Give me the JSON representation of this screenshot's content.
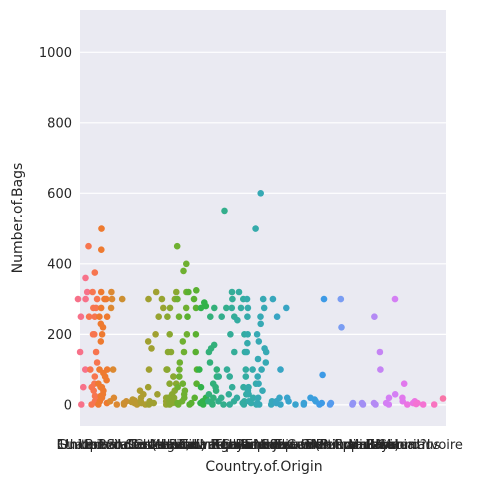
{
  "chart_data": {
    "type": "scatter",
    "subtype": "strip",
    "title": "",
    "xlabel": "Country.of.Origin",
    "ylabel": "Number.of.Bags",
    "ylim": [
      -60,
      1120
    ],
    "yticks": [
      0,
      200,
      400,
      600,
      800,
      1000
    ],
    "grid": true,
    "background": "#eaeaf2",
    "gridColor": "#ffffff",
    "categories": [
      "Ethiopia",
      "Guatemala",
      "Brazil",
      "Peru",
      "United States",
      "United States (Hawaii)",
      "Indonesia",
      "China",
      "Costa Rica",
      "Mexico",
      "Uganda",
      "Honduras",
      "Taiwan",
      "Nicaragua",
      "Tanzania, United Republic Of",
      "Kenya",
      "Thailand",
      "Colombia",
      "Panama",
      "Papua New Guinea",
      "El Salvador",
      "Japan",
      "Ecuador",
      "United States (Puerto Rico)",
      "Haiti",
      "Burundi",
      "Vietnam",
      "Philippines",
      "Rwanda",
      "Malawi",
      "Laos",
      "Zambia",
      "Myanmar",
      "Mauritius",
      "Cote d?Ivoire"
    ],
    "series": [
      {
        "category": "Ethiopia",
        "color": "#f77189",
        "values": [
          300,
          320,
          250,
          150,
          100,
          50,
          1,
          360,
          300
        ]
      },
      {
        "category": "Guatemala",
        "color": "#f7754f",
        "values": [
          275,
          250,
          200,
          150,
          100,
          50,
          25,
          10,
          450,
          375,
          320,
          300,
          275,
          250,
          200,
          120,
          80,
          60,
          40,
          20,
          5,
          1
        ]
      },
      {
        "category": "Brazil",
        "color": "#ee7a30",
        "values": [
          320,
          300,
          275,
          250,
          230,
          200,
          180,
          100,
          90,
          80,
          70,
          60,
          50,
          40,
          30,
          20,
          10,
          5,
          1,
          500,
          440,
          300,
          250,
          220,
          100,
          50,
          25
        ]
      },
      {
        "category": "Peru",
        "color": "#dc8932",
        "values": [
          320,
          300,
          275,
          100,
          20,
          10,
          1
        ]
      },
      {
        "category": "United States",
        "color": "#cc8f32",
        "values": [
          300,
          10,
          5,
          1
        ]
      },
      {
        "category": "United States (Hawaii)",
        "color": "#bb9832",
        "values": [
          15,
          10,
          5,
          1,
          8,
          12
        ]
      },
      {
        "category": "Indonesia",
        "color": "#ae9d31",
        "values": [
          40,
          30,
          20,
          10,
          5,
          1
        ]
      },
      {
        "category": "China",
        "color": "#a0a031",
        "values": [
          320,
          300,
          200,
          180,
          160,
          100,
          50,
          30,
          10,
          5,
          1
        ]
      },
      {
        "category": "Costa Rica",
        "color": "#97a431",
        "values": [
          300,
          275,
          250,
          100,
          20,
          10,
          1
        ]
      },
      {
        "category": "Mexico",
        "color": "#8aa831",
        "values": [
          320,
          300,
          275,
          250,
          200,
          150,
          100,
          80,
          60,
          40,
          30,
          20,
          10,
          5,
          1,
          150,
          60,
          20,
          5
        ]
      },
      {
        "category": "Uganda",
        "color": "#6fb031",
        "values": [
          450,
          400,
          380,
          320,
          300,
          275,
          250,
          200,
          180,
          150,
          120,
          100,
          80,
          60,
          50,
          40,
          30,
          20,
          10,
          5,
          1
        ]
      },
      {
        "category": "Honduras",
        "color": "#5ab031",
        "values": [
          325,
          320,
          300,
          275,
          250,
          200,
          150,
          100,
          60,
          20,
          5,
          1
        ]
      },
      {
        "category": "Taiwan",
        "color": "#32b24a",
        "values": [
          290,
          280,
          275,
          100,
          50,
          20,
          10,
          5,
          1
        ]
      },
      {
        "category": "Nicaragua",
        "color": "#33b07a",
        "values": [
          275,
          250,
          170,
          160,
          150,
          120,
          100,
          80,
          60,
          50,
          40,
          30,
          20,
          10,
          5,
          1
        ]
      },
      {
        "category": "Tanzania, United Republic Of",
        "color": "#33ae8c",
        "values": [
          550,
          275,
          250,
          80,
          20,
          10,
          1
        ]
      },
      {
        "category": "Kenya",
        "color": "#34ad98",
        "values": [
          320,
          300,
          275,
          250,
          200,
          150,
          100,
          80,
          50,
          30,
          10,
          1
        ]
      },
      {
        "category": "Thailand",
        "color": "#34aca1",
        "values": [
          320,
          300,
          275,
          240,
          200,
          150,
          100,
          80,
          50,
          30,
          20,
          10,
          5,
          1
        ]
      },
      {
        "category": "Colombia",
        "color": "#35abab",
        "values": [
          500,
          300,
          275,
          250,
          200,
          175,
          150,
          100,
          60,
          50,
          40,
          30,
          20,
          10,
          5,
          1
        ]
      },
      {
        "category": "Panama",
        "color": "#36a9b4",
        "values": [
          600,
          300,
          275,
          250,
          230,
          200,
          180,
          160,
          150,
          130,
          120,
          100,
          80,
          60,
          40,
          20,
          5,
          1
        ]
      },
      {
        "category": "Papua New Guinea",
        "color": "#37a7bc",
        "values": [
          300,
          10,
          1
        ]
      },
      {
        "category": "El Salvador",
        "color": "#38a5c4",
        "values": [
          275,
          250,
          100,
          20,
          10,
          5,
          1
        ]
      },
      {
        "category": "Japan",
        "color": "#39a3cd",
        "values": [
          20,
          10,
          1
        ]
      },
      {
        "category": "Ecuador",
        "color": "#3aa1d6",
        "values": [
          5,
          1
        ]
      },
      {
        "category": "United States (Puerto Rico)",
        "color": "#3b9edd",
        "values": [
          20,
          15,
          10
        ]
      },
      {
        "category": "Haiti",
        "color": "#3d9ae6",
        "values": [
          300,
          85,
          5,
          1
        ]
      },
      {
        "category": "Burundi",
        "color": "#559bee",
        "values": [
          1,
          5
        ]
      },
      {
        "category": "Vietnam",
        "color": "#7a9df3",
        "values": [
          300,
          220
        ]
      },
      {
        "category": "Philippines",
        "color": "#9394f5",
        "values": [
          5,
          1
        ]
      },
      {
        "category": "Rwanda",
        "color": "#a38ff4",
        "values": [
          5,
          1
        ]
      },
      {
        "category": "Malawi",
        "color": "#b48af4",
        "values": [
          250,
          5,
          1
        ]
      },
      {
        "category": "Laos",
        "color": "#c584f4",
        "values": [
          150,
          100
        ]
      },
      {
        "category": "Zambia",
        "color": "#d47ff4",
        "values": [
          300,
          30,
          20,
          5,
          1
        ]
      },
      {
        "category": "Myanmar",
        "color": "#e178ed",
        "values": [
          60,
          20,
          10
        ]
      },
      {
        "category": "Mauritius",
        "color": "#ec74e2",
        "values": [
          10,
          5,
          1
        ]
      },
      {
        "category": "Cote d?Ivoire",
        "color": "#f473d3",
        "values": [
          5,
          1,
          2
        ]
      },
      {
        "category": "",
        "color": "#f874c0",
        "values": [
          1
        ]
      },
      {
        "category": "",
        "color": "#f875a8",
        "values": [
          18
        ]
      }
    ]
  }
}
